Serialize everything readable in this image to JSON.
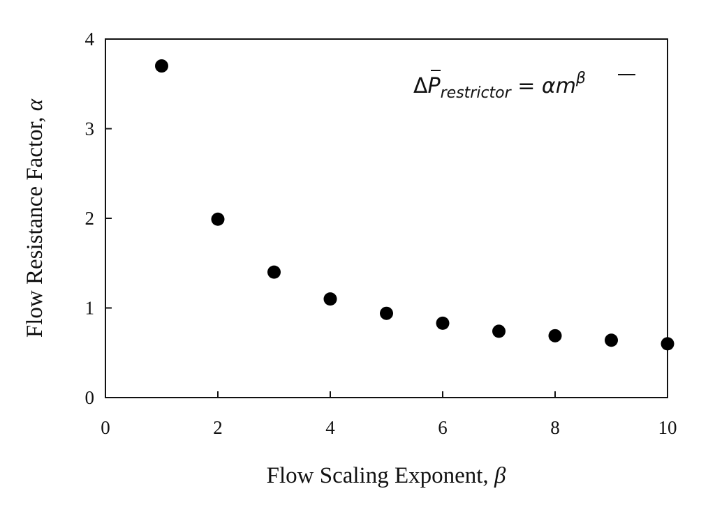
{
  "chart_data": {
    "type": "scatter",
    "xlabel": "Flow Scaling Exponent, ",
    "xlabel_symbol": "β",
    "ylabel": "Flow Resistance Factor, ",
    "ylabel_symbol": "α",
    "xlim": [
      0,
      10
    ],
    "ylim": [
      0,
      4
    ],
    "xticks": [
      0,
      2,
      4,
      6,
      8,
      10
    ],
    "yticks": [
      0,
      1,
      2,
      3,
      4
    ],
    "grid": false,
    "marker_color": "#000000",
    "annotation": {
      "delta": "Δ",
      "p": "P",
      "subscript": "restrictor",
      "equals": " = ",
      "alpha": "α",
      "m": "m",
      "beta": "β"
    },
    "series": [
      {
        "x": [
          1,
          2,
          3,
          4,
          5,
          6,
          7,
          8,
          9,
          10
        ],
        "y": [
          3.7,
          1.99,
          1.4,
          1.1,
          0.94,
          0.83,
          0.74,
          0.69,
          0.64,
          0.6
        ]
      }
    ]
  }
}
